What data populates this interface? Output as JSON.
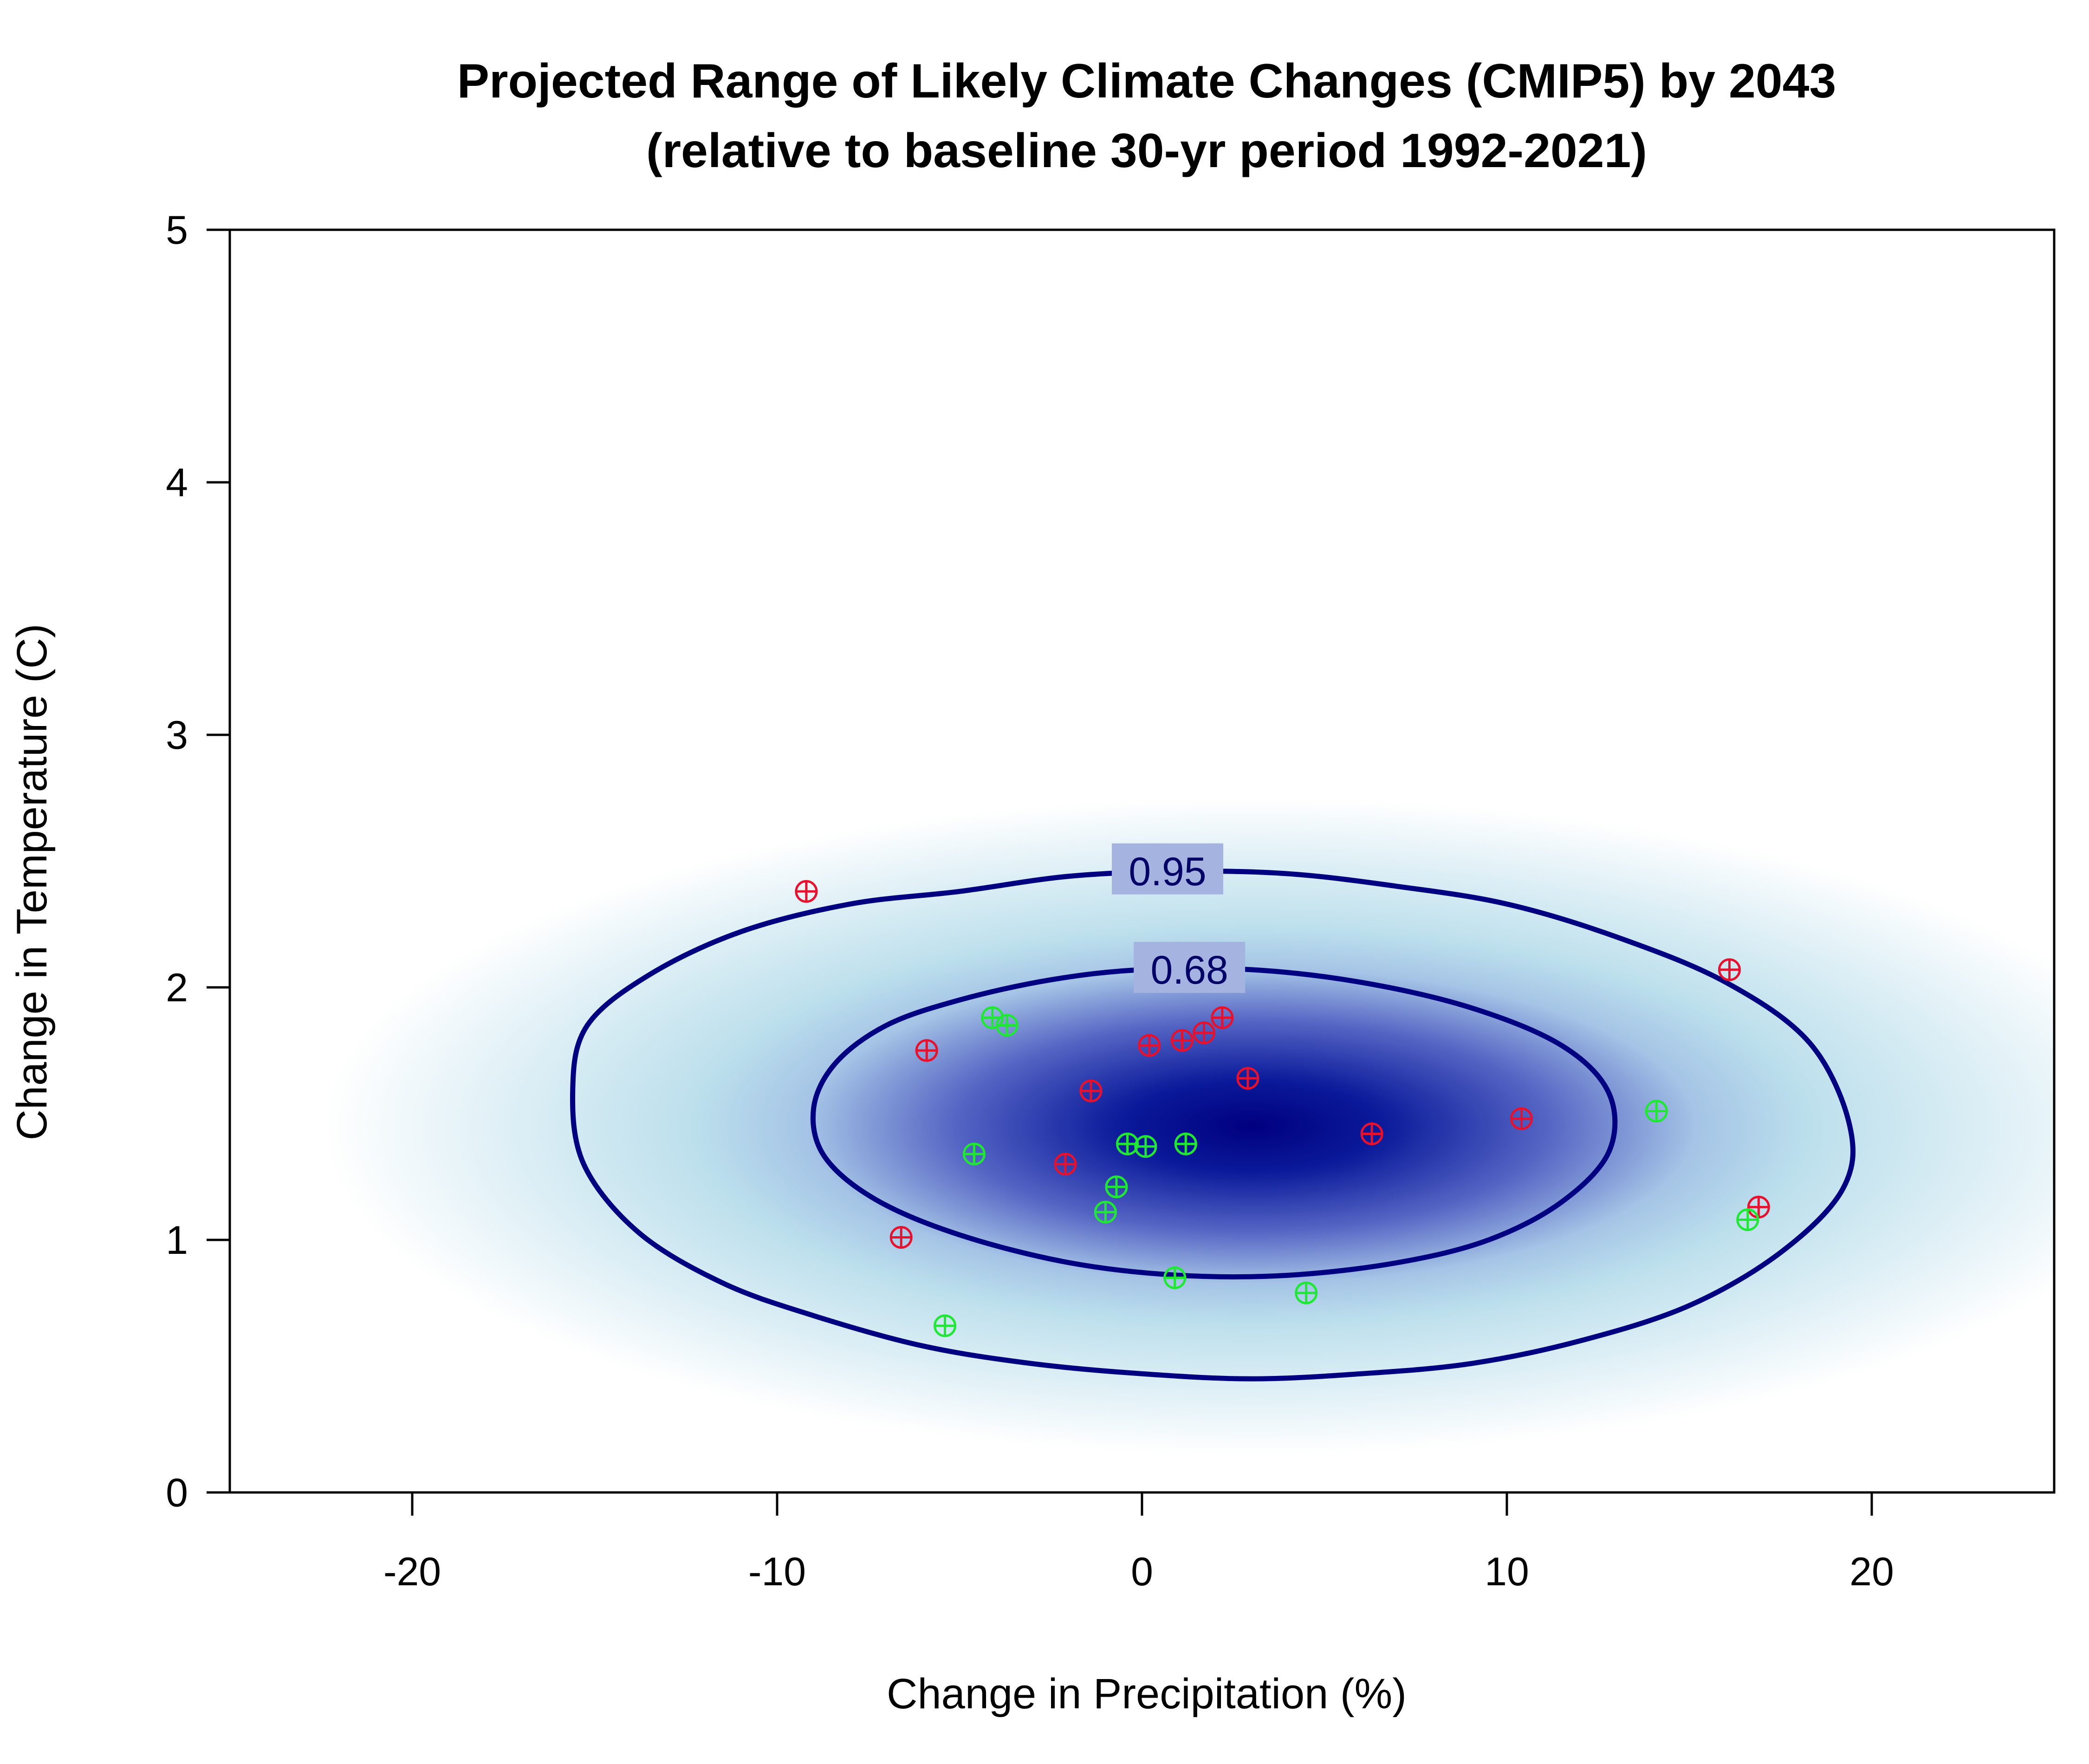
{
  "colors": {
    "density_low": "#ffffff",
    "density_mid": "#bcdfec",
    "density_high": "#000080",
    "contour": "#000080",
    "point_red": "#e8112d",
    "point_green": "#1ee833"
  },
  "chart_data": {
    "type": "scatter",
    "title": "Projected Range of Likely Climate Changes (CMIP5) by 2043",
    "subtitle": "(relative to baseline 30-yr period 1992-2021)",
    "xlabel": "Change in Precipitation (%)",
    "ylabel": "Change in Temperature (C)",
    "xlim": [
      -25,
      25
    ],
    "ylim": [
      0,
      5
    ],
    "xticks": [
      -20,
      -10,
      0,
      10,
      20
    ],
    "yticks": [
      0,
      1,
      2,
      3,
      4,
      5
    ],
    "xtick_labels": [
      "-20",
      "-10",
      "0",
      "10",
      "20"
    ],
    "ytick_labels": [
      "0",
      "1",
      "2",
      "3",
      "4",
      "5"
    ],
    "density": {
      "center": [
        3.0,
        1.45
      ],
      "sd_x": 8.2,
      "sd_y": 0.42
    },
    "contours": [
      {
        "label": "0.95",
        "label_at": [
          0.7,
          2.46
        ],
        "points": [
          [
            -15.6,
            1.6
          ],
          [
            -15.2,
            1.85
          ],
          [
            -13.5,
            2.05
          ],
          [
            -11,
            2.22
          ],
          [
            -8,
            2.33
          ],
          [
            -5,
            2.38
          ],
          [
            -2,
            2.44
          ],
          [
            1,
            2.46
          ],
          [
            4,
            2.45
          ],
          [
            7,
            2.4
          ],
          [
            10,
            2.33
          ],
          [
            13,
            2.2
          ],
          [
            16,
            2.02
          ],
          [
            18.3,
            1.78
          ],
          [
            19.4,
            1.45
          ],
          [
            19.2,
            1.2
          ],
          [
            17.5,
            0.95
          ],
          [
            15,
            0.74
          ],
          [
            12,
            0.6
          ],
          [
            9,
            0.51
          ],
          [
            6,
            0.47
          ],
          [
            3,
            0.45
          ],
          [
            0,
            0.47
          ],
          [
            -3,
            0.51
          ],
          [
            -6,
            0.58
          ],
          [
            -9,
            0.7
          ],
          [
            -11.5,
            0.83
          ],
          [
            -13.8,
            1.03
          ],
          [
            -15.3,
            1.3
          ]
        ]
      },
      {
        "label": "0.68",
        "label_at": [
          1.3,
          2.07
        ],
        "points": [
          [
            -9.0,
            1.52
          ],
          [
            -8.4,
            1.7
          ],
          [
            -7,
            1.85
          ],
          [
            -5,
            1.95
          ],
          [
            -2.5,
            2.03
          ],
          [
            0,
            2.07
          ],
          [
            3,
            2.07
          ],
          [
            6,
            2.02
          ],
          [
            9,
            1.92
          ],
          [
            11.5,
            1.77
          ],
          [
            12.8,
            1.58
          ],
          [
            12.8,
            1.35
          ],
          [
            11.5,
            1.15
          ],
          [
            9.5,
            1.0
          ],
          [
            7,
            0.91
          ],
          [
            4,
            0.86
          ],
          [
            1,
            0.86
          ],
          [
            -2,
            0.91
          ],
          [
            -5,
            1.02
          ],
          [
            -7.3,
            1.16
          ],
          [
            -8.7,
            1.33
          ]
        ]
      }
    ],
    "series": [
      {
        "color": "red",
        "points": [
          [
            -9.2,
            2.38
          ],
          [
            -6.6,
            1.01
          ],
          [
            -5.9,
            1.75
          ],
          [
            -2.1,
            1.3
          ],
          [
            -1.4,
            1.59
          ],
          [
            0.2,
            1.77
          ],
          [
            1.1,
            1.79
          ],
          [
            1.7,
            1.82
          ],
          [
            2.2,
            1.88
          ],
          [
            2.9,
            1.64
          ],
          [
            6.3,
            1.42
          ],
          [
            10.4,
            1.48
          ],
          [
            16.1,
            2.07
          ],
          [
            16.9,
            1.13
          ]
        ]
      },
      {
        "color": "green",
        "points": [
          [
            -5.4,
            0.66
          ],
          [
            -4.6,
            1.34
          ],
          [
            -4.1,
            1.88
          ],
          [
            -3.7,
            1.85
          ],
          [
            -1.0,
            1.11
          ],
          [
            -0.7,
            1.21
          ],
          [
            -0.4,
            1.38
          ],
          [
            0.1,
            1.37
          ],
          [
            0.9,
            0.85
          ],
          [
            1.2,
            1.38
          ],
          [
            4.5,
            0.79
          ],
          [
            14.1,
            1.51
          ],
          [
            16.6,
            1.08
          ]
        ]
      }
    ]
  }
}
